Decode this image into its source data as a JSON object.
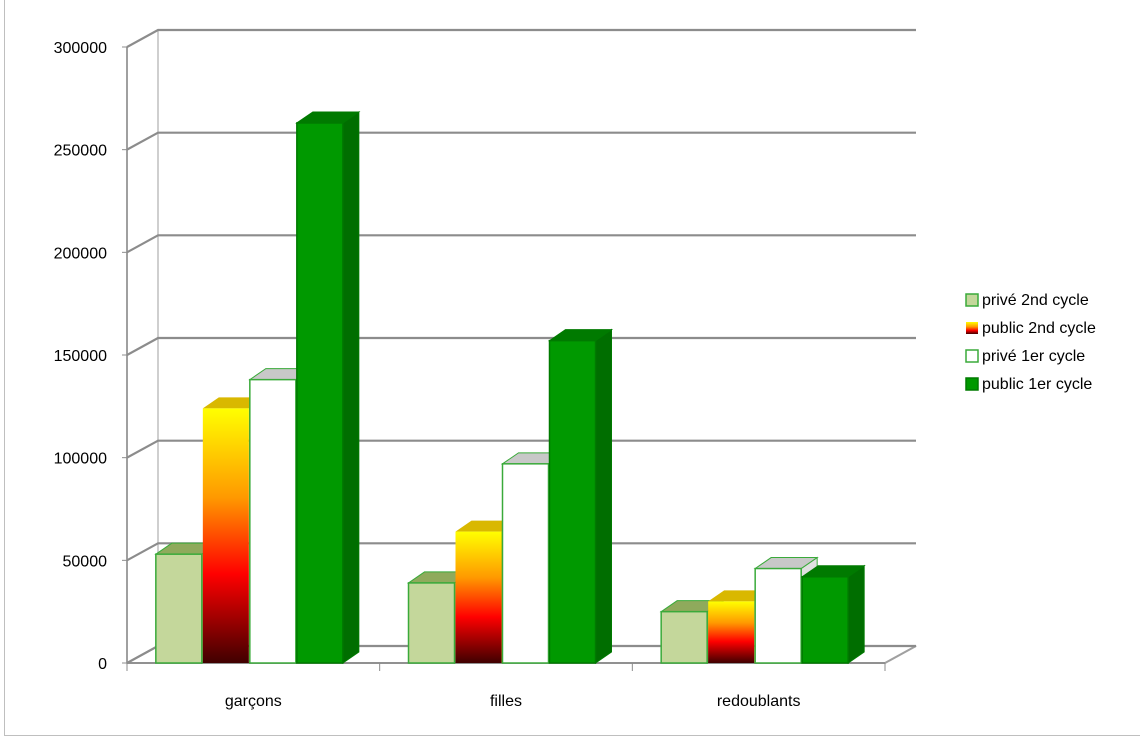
{
  "chart_data": {
    "type": "bar",
    "style": "3d-clustered-column",
    "categories": [
      "garçons",
      "filles",
      "redoublants"
    ],
    "series": [
      {
        "name": "privé 2nd cycle",
        "values": [
          53000,
          39000,
          25000
        ],
        "color": "#c4d79b"
      },
      {
        "name": "public 2nd cycle",
        "values": [
          124000,
          64000,
          30000
        ],
        "color": "gradient-yellow-red-black"
      },
      {
        "name": "privé 1er cycle",
        "values": [
          138000,
          97000,
          46000
        ],
        "color": "#ffffff"
      },
      {
        "name": "public 1er cycle",
        "values": [
          263000,
          157000,
          42000
        ],
        "color": "#009900"
      }
    ],
    "ylim": [
      0,
      300000
    ],
    "yticks": [
      "0",
      "50000",
      "100000",
      "150000",
      "200000",
      "250000",
      "300000"
    ],
    "title": "",
    "xlabel": "",
    "ylabel": "",
    "grid": true,
    "legend": "right"
  }
}
